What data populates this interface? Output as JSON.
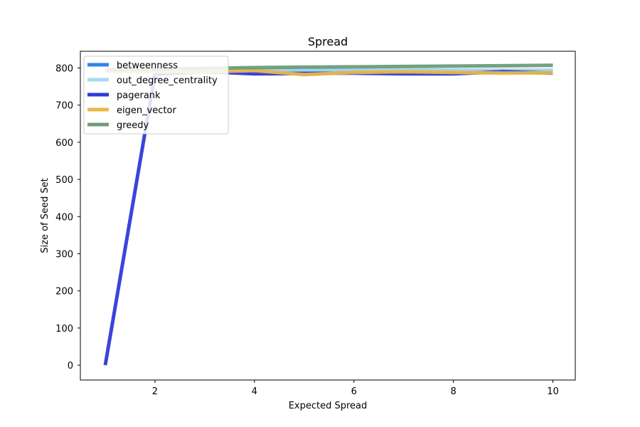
{
  "chart_data": {
    "type": "line",
    "title": "Spread",
    "xlabel": "Expected Spread",
    "ylabel": "Size of Seed Set",
    "xlim": [
      0.5,
      10.45
    ],
    "ylim": [
      -40,
      845
    ],
    "xticks": [
      2,
      4,
      6,
      8,
      10
    ],
    "yticks": [
      0,
      100,
      200,
      300,
      400,
      500,
      600,
      700,
      800
    ],
    "x": [
      1,
      2,
      3,
      4,
      5,
      6,
      7,
      8,
      9,
      10
    ],
    "grid": false,
    "legend_position": "top-left",
    "series": [
      {
        "name": "betweenness",
        "color": "#2f86e6",
        "values": [
          795,
          796,
          795,
          794,
          793,
          793,
          792,
          792,
          793,
          792
        ]
      },
      {
        "name": "out_degree_centrality",
        "color": "#a8d8f0",
        "values": [
          796,
          797,
          797,
          796,
          795,
          795,
          795,
          794,
          794,
          794
        ]
      },
      {
        "name": "pagerank",
        "color": "#2f3ad8",
        "values": [
          0,
          783,
          790,
          784,
          785,
          786,
          784,
          784,
          790,
          786
        ]
      },
      {
        "name": "eigen_vector",
        "color": "#e8b84a",
        "values": [
          791,
          790,
          790,
          793,
          782,
          788,
          790,
          788,
          786,
          787
        ]
      },
      {
        "name": "greedy",
        "color": "#6d9c7a",
        "values": [
          795,
          797,
          799,
          801,
          802,
          803,
          804,
          805,
          806,
          807
        ]
      }
    ]
  }
}
